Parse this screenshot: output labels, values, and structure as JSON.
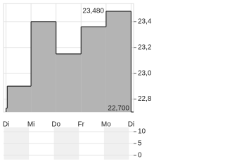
{
  "chart_data": [
    {
      "type": "step-area",
      "x": [
        0,
        0.05,
        1,
        2,
        3,
        4,
        5
      ],
      "values": [
        22.73,
        22.9,
        23.4,
        23.15,
        23.36,
        23.48,
        22.7
      ],
      "color": "#b4b4b4",
      "line_color": "#2b2b2b",
      "xlim": [
        -0.1,
        5.1
      ],
      "xticks": [
        {
          "value": 0,
          "label": "Di"
        },
        {
          "value": 1,
          "label": "Mi"
        },
        {
          "value": 2,
          "label": "Do"
        },
        {
          "value": 3,
          "label": "Fr"
        },
        {
          "value": 4,
          "label": "Mo"
        },
        {
          "value": 5,
          "label": "Di"
        }
      ],
      "ylim": [
        22.7,
        23.54
      ],
      "yticks": [
        {
          "value": 22.8,
          "label": "22,8"
        },
        {
          "value": 23.0,
          "label": "23,0"
        },
        {
          "value": 23.2,
          "label": "23,2"
        },
        {
          "value": 23.4,
          "label": "23,4"
        }
      ],
      "grid": true,
      "annotations": [
        {
          "label": "23,480",
          "value": 23.48
        },
        {
          "label": "22,700",
          "value": 22.7
        }
      ]
    },
    {
      "type": "bar",
      "ylim": [
        -1.8,
        11.8
      ],
      "yticks": [
        0,
        5,
        10
      ]
    }
  ]
}
